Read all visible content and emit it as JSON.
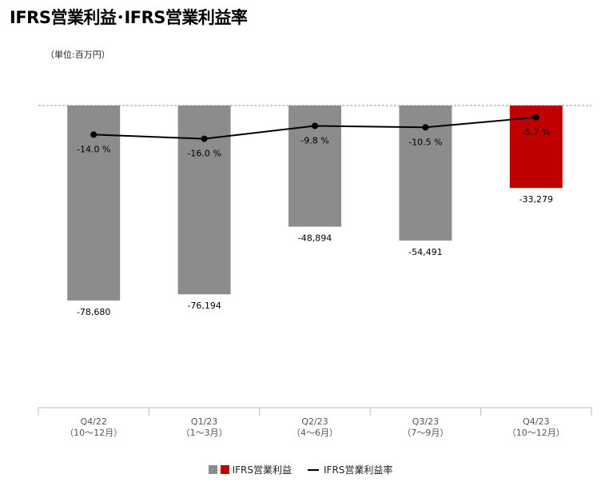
{
  "title": "IFRS営業利益･IFRS営業利益率",
  "unit_label": "（単位:百万円）",
  "legend": {
    "bar_label": "IFRS営業利益",
    "line_label": "IFRS営業利益率"
  },
  "colors": {
    "bar_gray": "#8c8c8c",
    "bar_red": "#c00000",
    "line": "#000000"
  },
  "chart_data": {
    "type": "bar",
    "categories": [
      "Q4/22",
      "Q1/23",
      "Q2/23",
      "Q3/23",
      "Q4/23"
    ],
    "sublabels": [
      "（10～12月）",
      "（1～3月）",
      "（4～6月）",
      "（7～9月）",
      "（10～12月）"
    ],
    "series": [
      {
        "name": "IFRS営業利益",
        "values": [
          -78680,
          -76194,
          -48894,
          -54491,
          -33279
        ],
        "labels": [
          "-78,680",
          "-76,194",
          "-48,894",
          "-54,491",
          "-33,279"
        ],
        "highlight_index": 4
      },
      {
        "name": "IFRS営業利益率",
        "type": "line",
        "values": [
          -14.0,
          -16.0,
          -9.8,
          -10.5,
          -5.7
        ],
        "labels": [
          "-14.0 %",
          "-16.0 %",
          "-9.8 %",
          "-10.5 %",
          "-5.7 %"
        ]
      }
    ],
    "ylim": [
      -120000,
      0
    ],
    "rate_ylim": [
      -50,
      0
    ],
    "zero_line": "dashed",
    "grid": false,
    "legend_position": "bottom-center"
  }
}
